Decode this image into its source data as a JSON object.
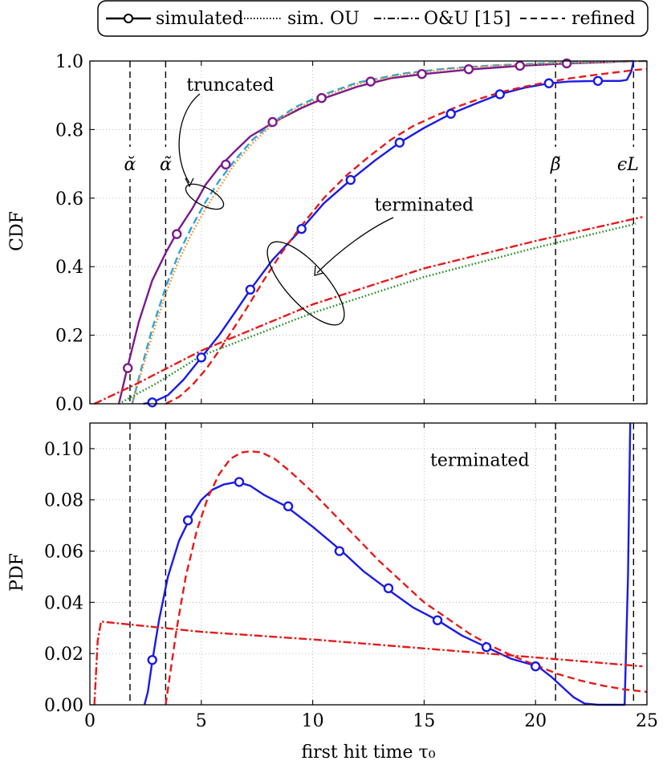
{
  "legend": {
    "items": [
      {
        "label": "simulated",
        "style": "solid-marker"
      },
      {
        "label": "sim. OU",
        "style": "dotted"
      },
      {
        "label": "O&U [15]",
        "style": "dashdot"
      },
      {
        "label": "refined",
        "style": "dashed"
      }
    ]
  },
  "colors": {
    "truncated_sim": "#7B1A8C",
    "terminated_sim": "#1A1AE6",
    "refined": "#E61A1A",
    "ou_dashdot": "#E61A1A",
    "sim_ou_truncated": "#F28C28",
    "sim_ou_terminated": "#1E8C1E",
    "refined_truncated": "#2BA6D9",
    "vline": "#000000"
  },
  "chart_data": [
    {
      "type": "line",
      "id": "cdf",
      "ylabel": "CDF",
      "xlim": [
        0,
        25
      ],
      "ylim": [
        0,
        1
      ],
      "xticks": [
        0,
        5,
        10,
        15,
        20,
        25
      ],
      "yticks": [
        0,
        0.2,
        0.4,
        0.6,
        0.8,
        1.0
      ],
      "ytick_labels": [
        "0.0",
        "0.2",
        "0.4",
        "0.6",
        "0.8",
        "1.0"
      ],
      "vlines": [
        {
          "x": 1.8,
          "label": "ᾰ"
        },
        {
          "x": 3.4,
          "label": "α̃"
        },
        {
          "x": 20.9,
          "label": "β̃"
        },
        {
          "x": 24.4,
          "label": "ϵL"
        }
      ],
      "annotations": [
        {
          "text": "truncated",
          "x": 6.3,
          "y": 0.93
        },
        {
          "text": "terminated",
          "x": 15.0,
          "y": 0.58
        }
      ],
      "series": [
        {
          "name": "truncated simulated",
          "color_key": "truncated_sim",
          "style": "solid",
          "markers": true,
          "x": [
            1.3,
            1.7,
            2.2,
            2.8,
            3.4,
            4.0,
            4.6,
            5.2,
            5.8,
            6.4,
            7.2,
            8.3,
            9.5,
            10.5,
            12.0,
            13.5,
            15.0,
            17.0,
            19.3,
            21.4,
            23.0,
            24.4
          ],
          "y": [
            0.0,
            0.11,
            0.24,
            0.36,
            0.44,
            0.51,
            0.57,
            0.64,
            0.69,
            0.73,
            0.78,
            0.823,
            0.863,
            0.891,
            0.925,
            0.95,
            0.962,
            0.975,
            0.986,
            0.993,
            0.996,
            1.0
          ],
          "marker_x": [
            1.7,
            3.9,
            6.1,
            8.2,
            10.4,
            12.6,
            14.9,
            17.0,
            19.3,
            21.4
          ],
          "marker_y": [
            0.104,
            0.495,
            0.698,
            0.822,
            0.892,
            0.94,
            0.962,
            0.976,
            0.986,
            0.993
          ]
        },
        {
          "name": "truncated refined",
          "color_key": "refined_truncated",
          "style": "dashed",
          "x": [
            1.9,
            2.3,
            2.8,
            3.4,
            4.0,
            4.6,
            5.2,
            5.8,
            6.5,
            7.3,
            8.2,
            9.2,
            10.4,
            12.0,
            14.0,
            16.0,
            18.0,
            20.5,
            23.0,
            25.0
          ],
          "y": [
            0.0,
            0.1,
            0.22,
            0.34,
            0.44,
            0.52,
            0.59,
            0.65,
            0.71,
            0.77,
            0.82,
            0.865,
            0.9,
            0.937,
            0.963,
            0.978,
            0.987,
            0.994,
            0.998,
            1.0
          ]
        },
        {
          "name": "truncated sim. OU",
          "color_key": "sim_ou_truncated",
          "style": "dotted",
          "x": [
            1.9,
            2.3,
            2.8,
            3.4,
            4.0,
            4.6,
            5.2,
            5.8,
            6.5,
            7.3,
            8.2,
            9.2,
            10.4,
            12.0,
            14.0,
            16.0,
            18.0,
            20.5,
            23.0,
            25.0
          ],
          "y": [
            0.0,
            0.09,
            0.2,
            0.32,
            0.42,
            0.5,
            0.57,
            0.63,
            0.7,
            0.76,
            0.815,
            0.86,
            0.895,
            0.933,
            0.96,
            0.976,
            0.986,
            0.993,
            0.997,
            0.999
          ]
        },
        {
          "name": "terminated simulated",
          "color_key": "terminated_sim",
          "style": "solid",
          "markers": true,
          "x": [
            2.4,
            2.8,
            3.5,
            4.2,
            5.0,
            5.8,
            6.6,
            7.2,
            8.2,
            9.5,
            10.5,
            11.7,
            12.8,
            13.9,
            15.0,
            16.2,
            17.4,
            18.4,
            19.5,
            20.6,
            21.5,
            22.8,
            23.8,
            24.1,
            24.3,
            24.4
          ],
          "y": [
            0.0,
            0.004,
            0.025,
            0.07,
            0.135,
            0.2,
            0.275,
            0.333,
            0.42,
            0.51,
            0.585,
            0.653,
            0.71,
            0.762,
            0.805,
            0.846,
            0.878,
            0.903,
            0.922,
            0.935,
            0.94,
            0.942,
            0.942,
            0.945,
            0.97,
            1.0
          ],
          "marker_x": [
            2.8,
            5.0,
            7.2,
            9.5,
            11.7,
            13.9,
            16.2,
            18.4,
            20.6,
            22.8
          ],
          "marker_y": [
            0.004,
            0.135,
            0.333,
            0.51,
            0.653,
            0.762,
            0.846,
            0.903,
            0.935,
            0.942
          ]
        },
        {
          "name": "terminated refined",
          "color_key": "refined",
          "style": "dashed",
          "x": [
            3.4,
            4.0,
            4.6,
            5.2,
            5.8,
            6.4,
            7.0,
            7.8,
            8.6,
            9.5,
            10.5,
            11.5,
            12.5,
            13.5,
            14.5,
            15.5,
            16.5,
            17.5,
            18.5,
            19.5,
            20.5,
            21.5,
            22.5,
            23.5,
            24.5,
            25.0
          ],
          "y": [
            0.0,
            0.02,
            0.055,
            0.1,
            0.155,
            0.215,
            0.275,
            0.36,
            0.44,
            0.52,
            0.6,
            0.665,
            0.72,
            0.77,
            0.81,
            0.84,
            0.867,
            0.89,
            0.91,
            0.925,
            0.938,
            0.949,
            0.958,
            0.966,
            0.974,
            0.977
          ]
        },
        {
          "name": "terminated O&U [15]",
          "color_key": "ou_dashdot",
          "style": "dashdot",
          "x": [
            0.2,
            2.0,
            5.0,
            10.0,
            15.0,
            20.0,
            24.8
          ],
          "y": [
            0.0,
            0.055,
            0.155,
            0.29,
            0.395,
            0.475,
            0.545
          ]
        },
        {
          "name": "terminated sim. OU",
          "color_key": "sim_ou_terminated",
          "style": "dotted",
          "x": [
            1.3,
            3.0,
            5.0,
            10.0,
            15.0,
            20.0,
            24.5
          ],
          "y": [
            0.0,
            0.06,
            0.14,
            0.265,
            0.37,
            0.455,
            0.525
          ]
        }
      ]
    },
    {
      "type": "line",
      "id": "pdf",
      "ylabel": "PDF",
      "xlabel": "first hit time τ₀",
      "xlim": [
        0,
        25
      ],
      "ylim": [
        0,
        0.11
      ],
      "xticks": [
        0,
        5,
        10,
        15,
        20,
        25
      ],
      "xtick_labels": [
        "0",
        "5",
        "10",
        "15",
        "20",
        "25"
      ],
      "yticks": [
        0,
        0.02,
        0.04,
        0.06,
        0.08,
        0.1
      ],
      "ytick_labels": [
        "0.00",
        "0.02",
        "0.04",
        "0.06",
        "0.08",
        "0.10"
      ],
      "vlines": [
        {
          "x": 1.8
        },
        {
          "x": 3.4
        },
        {
          "x": 20.9
        },
        {
          "x": 24.4
        }
      ],
      "annotations": [
        {
          "text": "terminated",
          "x": 17.5,
          "y": 0.0955
        }
      ],
      "series": [
        {
          "name": "terminated simulated",
          "color_key": "terminated_sim",
          "style": "solid",
          "markers": true,
          "x": [
            2.45,
            2.6,
            2.8,
            3.1,
            3.5,
            4.0,
            4.5,
            5.0,
            5.5,
            6.0,
            6.6,
            7.2,
            7.8,
            8.8,
            10.0,
            11.3,
            12.3,
            13.3,
            14.5,
            15.6,
            16.7,
            17.8,
            18.9,
            20.1,
            20.7,
            21.2,
            21.7,
            22.2,
            22.8,
            24.0,
            24.15,
            24.25
          ],
          "y": [
            0.0,
            0.005,
            0.017,
            0.033,
            0.05,
            0.064,
            0.073,
            0.08,
            0.084,
            0.086,
            0.087,
            0.0855,
            0.082,
            0.0775,
            0.0695,
            0.06,
            0.052,
            0.0455,
            0.038,
            0.033,
            0.027,
            0.0225,
            0.018,
            0.015,
            0.011,
            0.007,
            0.003,
            0.0005,
            0.0,
            0.0,
            0.05,
            0.11
          ],
          "marker_x": [
            2.8,
            4.4,
            6.7,
            8.9,
            11.2,
            13.4,
            15.6,
            17.8,
            20.0
          ],
          "marker_y": [
            0.0175,
            0.072,
            0.087,
            0.0775,
            0.06,
            0.0455,
            0.033,
            0.0225,
            0.015
          ]
        },
        {
          "name": "terminated refined",
          "color_key": "refined",
          "style": "dashed",
          "x": [
            3.4,
            3.6,
            3.9,
            4.3,
            4.8,
            5.3,
            5.8,
            6.3,
            6.8,
            7.2,
            7.7,
            8.3,
            9.0,
            10.0,
            11.0,
            12.0,
            13.0,
            14.0,
            15.0,
            16.0,
            17.0,
            18.0,
            19.0,
            20.0,
            21.0,
            22.0,
            23.0,
            24.0,
            25.0
          ],
          "y": [
            0.0,
            0.012,
            0.03,
            0.05,
            0.068,
            0.081,
            0.09,
            0.096,
            0.0985,
            0.099,
            0.0985,
            0.096,
            0.091,
            0.083,
            0.074,
            0.065,
            0.056,
            0.048,
            0.04,
            0.034,
            0.028,
            0.023,
            0.019,
            0.0155,
            0.012,
            0.0095,
            0.0075,
            0.006,
            0.005
          ]
        },
        {
          "name": "terminated O&U [15]",
          "color_key": "ou_dashdot",
          "style": "dashdot",
          "x": [
            0.2,
            0.35,
            0.5,
            5.0,
            10.0,
            15.0,
            20.0,
            24.8
          ],
          "y": [
            0.0,
            0.025,
            0.0325,
            0.0285,
            0.0255,
            0.022,
            0.0185,
            0.015
          ]
        }
      ]
    }
  ]
}
